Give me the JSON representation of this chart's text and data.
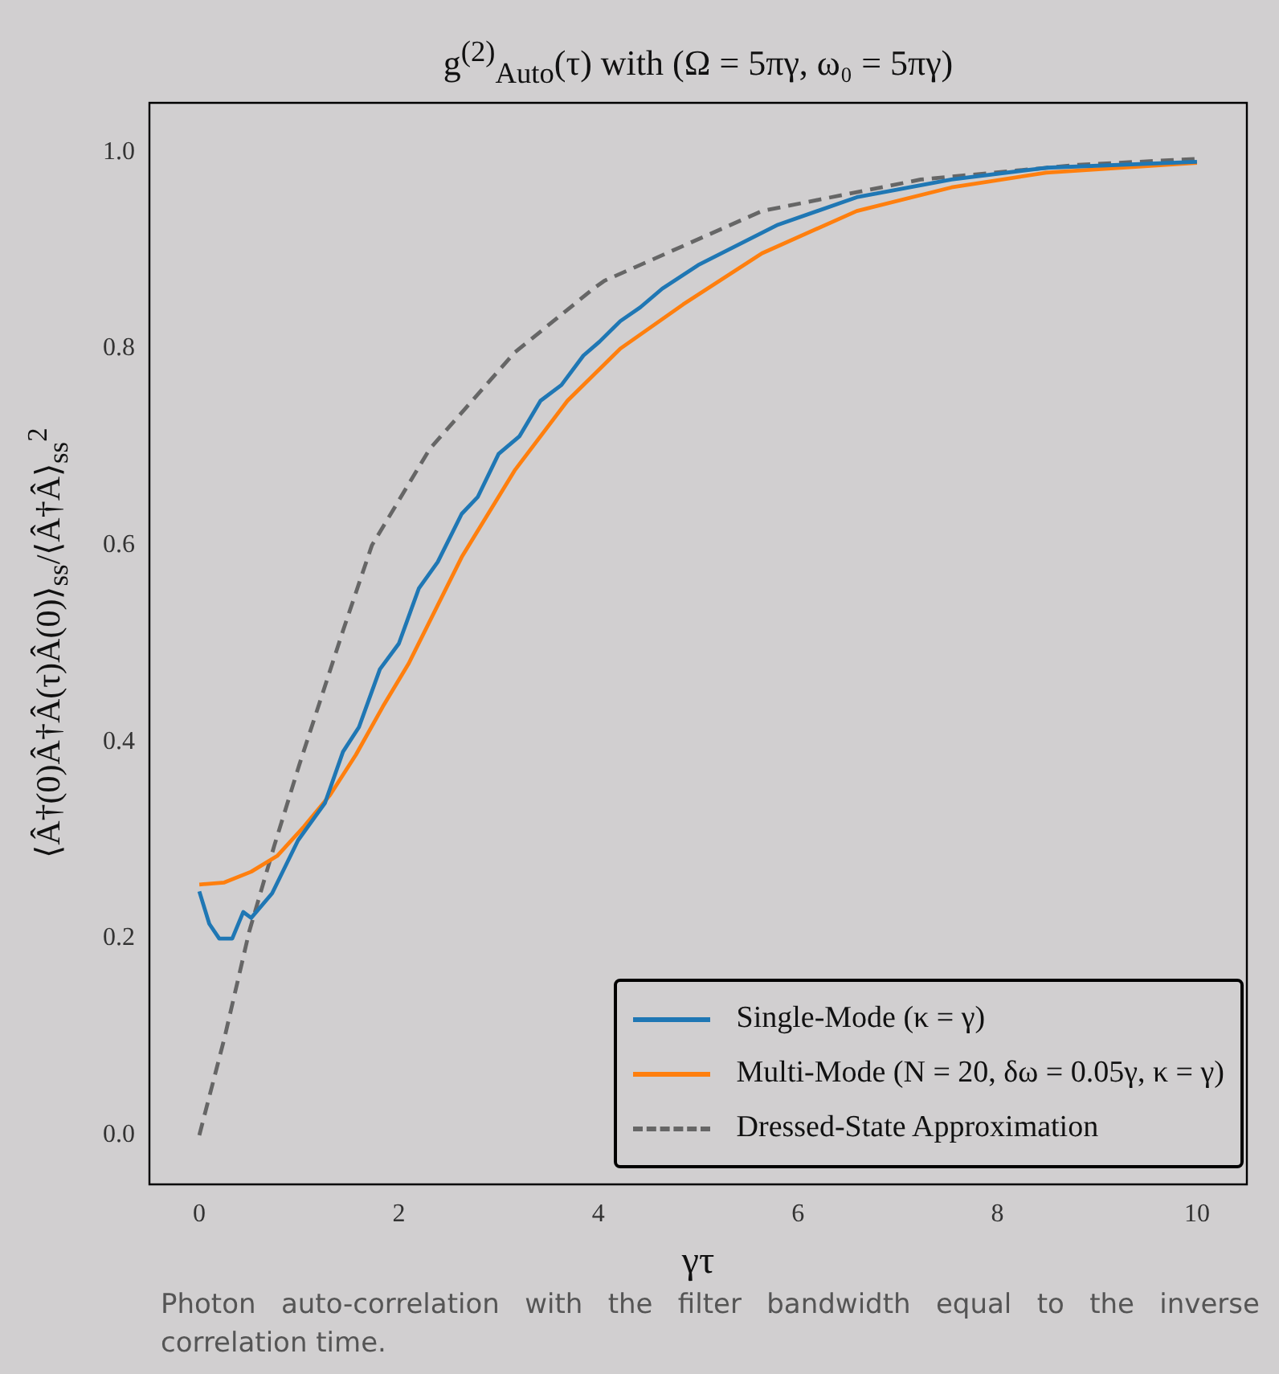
{
  "chart_data": {
    "type": "line",
    "title": "g$^{(2)}$$_{Auto}$(τ) with (Ω = 5πγ, ω₀ = 5πγ)",
    "xlabel": "γτ",
    "ylabel": "⟨Â†(0)Â†Â(τ)Â(0)⟩$_{ss}$/⟨Â†Â⟩$_{ss}$$^{2}$",
    "annotations": [
      "Photon auto-correlation with the filter bandwidth  equal to the inverse correlation time."
    ],
    "xlim": [
      -0.5,
      10.5
    ],
    "xticks": [
      0,
      2,
      4,
      6,
      8,
      10
    ],
    "ylim": [
      -0.05,
      1.05
    ],
    "yticks": [
      {
        "value": 0,
        "label": "0.0"
      },
      {
        "value": 0.2,
        "label": "0.2"
      },
      {
        "value": 0.4,
        "label": "0.4"
      },
      {
        "value": 0.6,
        "label": "0.6"
      },
      {
        "value": 0.8,
        "label": "0.8"
      },
      {
        "value": 1,
        "label": "1.0"
      }
    ],
    "grid": false,
    "legend": "bottom right",
    "marker": "none",
    "series": [
      {
        "name": "Single-Mode (κ = γ)",
        "color": "#1f77b4",
        "line_style": "solid",
        "x": [
          0,
          0.1,
          0.2,
          0.33,
          0.44,
          0.52,
          0.73,
          0.99,
          1.26,
          1.44,
          1.6,
          1.81,
          2.0,
          2.2,
          2.39,
          2.63,
          2.79,
          3.0,
          3.21,
          3.42,
          3.63,
          3.85,
          4.01,
          4.22,
          4.42,
          4.64,
          5.0,
          5.8,
          6.59,
          7.54,
          8.49,
          10
        ],
        "values": [
          0.248,
          0.215,
          0.2,
          0.2,
          0.227,
          0.221,
          0.246,
          0.3,
          0.338,
          0.39,
          0.415,
          0.474,
          0.5,
          0.556,
          0.583,
          0.632,
          0.649,
          0.693,
          0.711,
          0.747,
          0.763,
          0.793,
          0.807,
          0.828,
          0.842,
          0.861,
          0.885,
          0.926,
          0.954,
          0.972,
          0.984,
          0.99
        ]
      },
      {
        "name": "Multi-Mode (N = 20, δω = 0.05γ, κ = γ)",
        "color": "#ff7f0e",
        "line_style": "solid",
        "x": [
          0,
          0.25,
          0.52,
          0.78,
          1.05,
          1.31,
          1.57,
          1.84,
          2.1,
          2.63,
          3.16,
          3.69,
          4.22,
          4.85,
          5.64,
          6.59,
          7.54,
          8.49,
          10
        ],
        "values": [
          0.255,
          0.257,
          0.268,
          0.284,
          0.314,
          0.346,
          0.387,
          0.436,
          0.48,
          0.588,
          0.676,
          0.747,
          0.8,
          0.845,
          0.897,
          0.94,
          0.964,
          0.979,
          0.989
        ]
      },
      {
        "name": "Dressed-State Approximation",
        "color": "#666666",
        "line_style": "dashed",
        "x": [
          0,
          0.25,
          0.5,
          0.75,
          1.0,
          1.44,
          1.73,
          2.31,
          3.16,
          3.95,
          4.06,
          5.64,
          7.23,
          8.81,
          10
        ],
        "values": [
          0,
          0.098,
          0.207,
          0.294,
          0.376,
          0.513,
          0.6,
          0.698,
          0.796,
          0.861,
          0.869,
          0.94,
          0.972,
          0.987,
          0.993
        ]
      }
    ]
  }
}
